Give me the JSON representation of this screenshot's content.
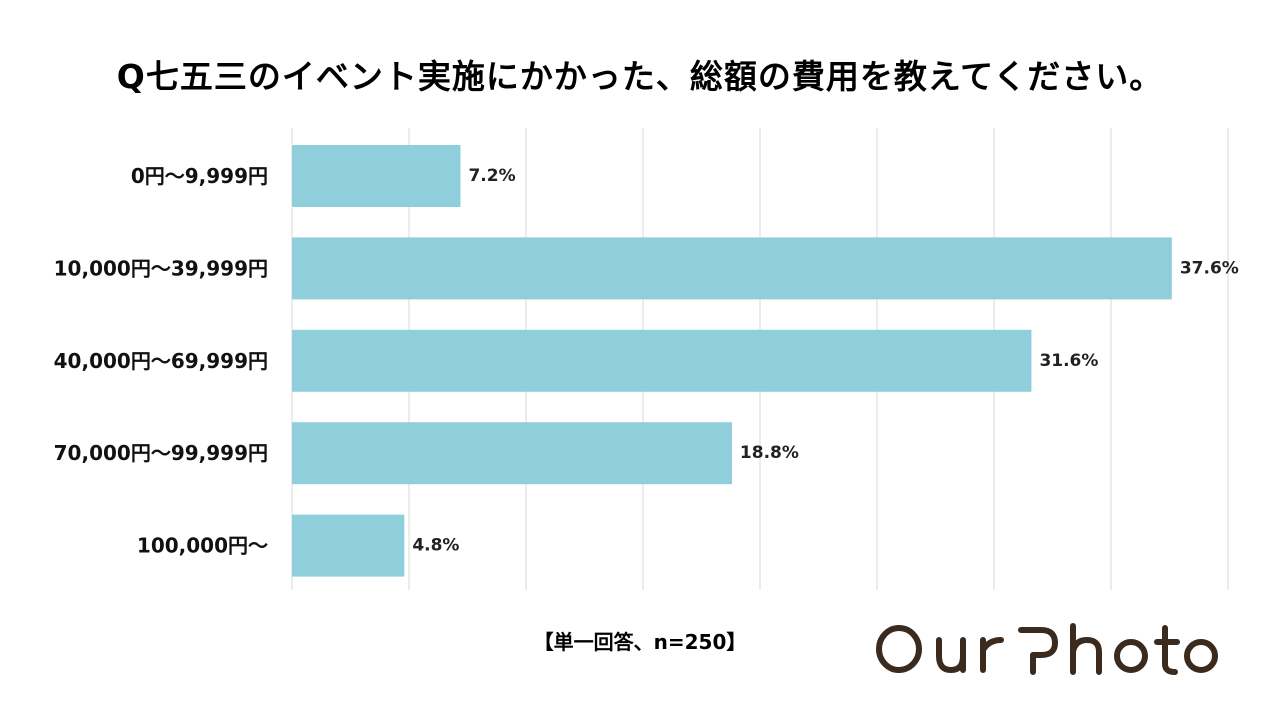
{
  "title": "Q七五三のイベント実施にかかった、総額の費用を教えてください。",
  "footnote": "【単一回答、n=250】",
  "logo_text": "OurPhoto",
  "colors": {
    "bar": "#8fcfdb",
    "grid": "#d9d9d9",
    "logo": "#3b2a1e"
  },
  "chart_data": {
    "type": "bar",
    "orientation": "horizontal",
    "categories": [
      "0円〜9,999円",
      "10,000円〜39,999円",
      "40,000円〜69,999円",
      "70,000円〜99,999円",
      "100,000円〜"
    ],
    "values": [
      7.2,
      37.6,
      31.6,
      18.8,
      4.8
    ],
    "value_labels": [
      "7.2%",
      "37.6%",
      "31.6%",
      "18.8%",
      "4.8%"
    ],
    "unit": "%",
    "xlim": [
      0,
      40
    ],
    "grid": true,
    "title": "Q七五三のイベント実施にかかった、総額の費用を教えてください。",
    "xlabel": "",
    "ylabel": ""
  }
}
